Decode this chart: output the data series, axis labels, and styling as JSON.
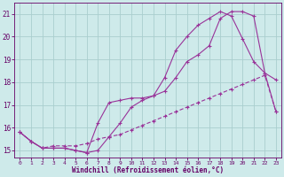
{
  "xlabel": "Windchill (Refroidissement éolien,°C)",
  "background_color": "#ceeaea",
  "grid_color": "#aacece",
  "line_color": "#993399",
  "xlim": [
    -0.5,
    23.5
  ],
  "ylim": [
    14.7,
    21.5
  ],
  "yticks": [
    15,
    16,
    17,
    18,
    19,
    20,
    21
  ],
  "xticks": [
    0,
    1,
    2,
    3,
    4,
    5,
    6,
    7,
    8,
    9,
    10,
    11,
    12,
    13,
    14,
    15,
    16,
    17,
    18,
    19,
    20,
    21,
    22,
    23
  ],
  "line1_x": [
    0,
    1,
    2,
    3,
    4,
    5,
    6,
    7,
    8,
    9,
    10,
    11,
    12,
    13,
    14,
    15,
    16,
    17,
    18,
    19,
    20,
    21,
    22,
    23
  ],
  "line1_y": [
    15.8,
    15.4,
    15.1,
    15.1,
    15.1,
    15.0,
    14.9,
    15.0,
    15.6,
    16.2,
    16.9,
    17.2,
    17.4,
    18.2,
    19.4,
    20.0,
    20.5,
    20.8,
    21.1,
    20.9,
    19.9,
    18.9,
    18.4,
    18.1
  ],
  "line2_x": [
    0,
    1,
    2,
    3,
    4,
    5,
    6,
    7,
    8,
    9,
    10,
    11,
    12,
    13,
    14,
    15,
    16,
    17,
    18,
    19,
    20,
    21,
    22,
    23
  ],
  "line2_y": [
    15.8,
    15.4,
    15.1,
    15.1,
    15.1,
    15.0,
    14.9,
    16.2,
    17.1,
    17.2,
    17.3,
    17.3,
    17.4,
    17.6,
    18.2,
    18.9,
    19.2,
    19.6,
    20.8,
    21.1,
    21.1,
    20.9,
    18.4,
    16.7
  ],
  "line3_x": [
    0,
    1,
    2,
    3,
    4,
    5,
    6,
    7,
    8,
    9,
    10,
    11,
    12,
    13,
    14,
    15,
    16,
    17,
    18,
    19,
    20,
    21,
    22,
    23
  ],
  "line3_y": [
    15.8,
    15.4,
    15.1,
    15.2,
    15.2,
    15.2,
    15.3,
    15.5,
    15.6,
    15.7,
    15.9,
    16.1,
    16.3,
    16.5,
    16.7,
    16.9,
    17.1,
    17.3,
    17.5,
    17.7,
    17.9,
    18.1,
    18.3,
    16.7
  ]
}
